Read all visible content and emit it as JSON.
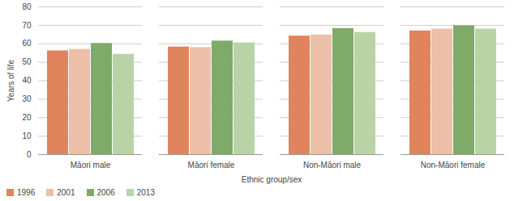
{
  "chart_data": {
    "type": "bar",
    "x_label": "Ethnic group/sex",
    "y_label": "Years of life",
    "categories": [
      "Māori male",
      "Māori female",
      "Non-Māori male",
      "Non-Māori female"
    ],
    "series": [
      {
        "name": "1996",
        "color": "#e0845e",
        "values": [
          56.2,
          58.3,
          64.2,
          67.0
        ]
      },
      {
        "name": "2001",
        "color": "#ecbfa8",
        "values": [
          57.0,
          58.0,
          64.8,
          68.0
        ]
      },
      {
        "name": "2006",
        "color": "#7faa68",
        "values": [
          60.2,
          61.5,
          68.3,
          69.8
        ]
      },
      {
        "name": "2013",
        "color": "#b9d3a6",
        "values": [
          54.3,
          60.5,
          66.2,
          68.0
        ]
      }
    ],
    "ylim": [
      0,
      80
    ],
    "yticks": [
      0,
      10,
      20,
      30,
      40,
      50,
      60,
      70,
      80
    ],
    "grid": true,
    "legend": "bottom-left"
  }
}
